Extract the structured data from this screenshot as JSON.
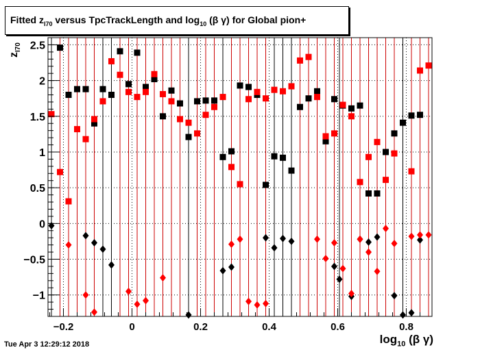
{
  "title": {
    "prefix": "Fitted  z",
    "prefix_sub": "I70",
    "middle": "  versus TpcTrackLength and log",
    "middle_sub": "10",
    "suffix": " (β γ) for Global pion+"
  },
  "y_axis_label": {
    "main": "z",
    "sub": "I70"
  },
  "x_axis_label": {
    "main": "log",
    "sub": "10",
    "suffix": " (β γ)"
  },
  "timestamp": "Tue Apr  3 12:29:12 2018",
  "chart_data": {
    "type": "scatter",
    "xlim": [
      -0.245,
      0.875
    ],
    "ylim": [
      -1.3,
      2.6
    ],
    "x_ticks": [
      -0.2,
      0,
      0.2,
      0.4,
      0.6,
      0.8
    ],
    "x_tick_labels": [
      "−0.2",
      "0",
      "0.2",
      "0.4",
      "0.6",
      "0.8"
    ],
    "y_ticks": [
      -1,
      -0.5,
      0,
      0.5,
      1,
      1.5,
      2,
      2.5
    ],
    "y_tick_labels": [
      "−1",
      "−0.5",
      "0",
      "0.5",
      "1",
      "1.5",
      "2",
      "2.5"
    ],
    "grid": true,
    "series": [
      {
        "color": "#000000",
        "marker": "square",
        "points": [
          [
            -0.21,
            2.46
          ],
          [
            -0.185,
            1.8
          ],
          [
            -0.16,
            1.88
          ],
          [
            -0.135,
            1.88
          ],
          [
            -0.11,
            1.4
          ],
          [
            -0.085,
            1.88
          ],
          [
            -0.06,
            1.8
          ],
          [
            -0.035,
            2.41
          ],
          [
            -0.01,
            1.95
          ],
          [
            0.015,
            2.39
          ],
          [
            0.04,
            1.91
          ],
          [
            0.065,
            2.02
          ],
          [
            0.09,
            1.5
          ],
          [
            0.115,
            1.86
          ],
          [
            0.14,
            1.68
          ],
          [
            0.165,
            1.21
          ],
          [
            0.19,
            1.71
          ],
          [
            0.215,
            1.72
          ],
          [
            0.24,
            1.72
          ],
          [
            0.265,
            0.93
          ],
          [
            0.29,
            1.01
          ],
          [
            0.315,
            1.93
          ],
          [
            0.34,
            1.91
          ],
          [
            0.365,
            1.8
          ],
          [
            0.39,
            0.54
          ],
          [
            0.415,
            0.94
          ],
          [
            0.44,
            0.92
          ],
          [
            0.465,
            0.74
          ],
          [
            0.49,
            1.63
          ],
          [
            0.515,
            1.75
          ],
          [
            0.54,
            1.85
          ],
          [
            0.565,
            1.15
          ],
          [
            0.59,
            1.74
          ],
          [
            0.615,
            1.65
          ],
          [
            0.64,
            1.61
          ],
          [
            0.665,
            1.65
          ],
          [
            0.69,
            0.42
          ],
          [
            0.715,
            0.42
          ],
          [
            0.74,
            1.0
          ],
          [
            0.765,
            1.26
          ],
          [
            0.79,
            1.41
          ],
          [
            0.815,
            1.51
          ],
          [
            0.84,
            1.52
          ]
        ]
      },
      {
        "color": "#ff0000",
        "marker": "square",
        "points": [
          [
            -0.235,
            1.53
          ],
          [
            -0.21,
            0.72
          ],
          [
            -0.185,
            0.31
          ],
          [
            -0.16,
            1.32
          ],
          [
            -0.135,
            1.18
          ],
          [
            -0.11,
            1.46
          ],
          [
            -0.085,
            1.71
          ],
          [
            -0.06,
            2.27
          ],
          [
            -0.035,
            2.08
          ],
          [
            -0.01,
            1.84
          ],
          [
            0.015,
            1.77
          ],
          [
            0.04,
            1.84
          ],
          [
            0.065,
            2.09
          ],
          [
            0.09,
            1.81
          ],
          [
            0.115,
            1.71
          ],
          [
            0.14,
            1.46
          ],
          [
            0.165,
            1.41
          ],
          [
            0.19,
            1.26
          ],
          [
            0.215,
            1.52
          ],
          [
            0.24,
            1.63
          ],
          [
            0.265,
            1.77
          ],
          [
            0.29,
            0.79
          ],
          [
            0.315,
            0.55
          ],
          [
            0.34,
            1.74
          ],
          [
            0.365,
            1.84
          ],
          [
            0.39,
            1.75
          ],
          [
            0.415,
            1.87
          ],
          [
            0.44,
            1.85
          ],
          [
            0.465,
            1.92
          ],
          [
            0.49,
            2.28
          ],
          [
            0.515,
            2.33
          ],
          [
            0.54,
            1.77
          ],
          [
            0.565,
            1.22
          ],
          [
            0.59,
            1.26
          ],
          [
            0.615,
            1.66
          ],
          [
            0.64,
            1.5
          ],
          [
            0.665,
            0.58
          ],
          [
            0.69,
            0.93
          ],
          [
            0.715,
            1.14
          ],
          [
            0.74,
            0.61
          ],
          [
            0.765,
            0.98
          ],
          [
            0.815,
            0.73
          ],
          [
            0.84,
            2.14
          ],
          [
            0.865,
            2.21
          ]
        ]
      },
      {
        "color": "#000000",
        "marker": "diamond",
        "points": [
          [
            -0.235,
            -0.03
          ],
          [
            -0.135,
            -0.17
          ],
          [
            -0.11,
            -0.27
          ],
          [
            -0.085,
            -0.36
          ],
          [
            -0.06,
            -0.58
          ],
          [
            0.165,
            -1.28
          ],
          [
            0.265,
            -0.66
          ],
          [
            0.29,
            -0.61
          ],
          [
            0.39,
            -0.2
          ],
          [
            0.415,
            -0.34
          ],
          [
            0.44,
            -0.21
          ],
          [
            0.465,
            -0.25
          ],
          [
            0.59,
            -0.6
          ],
          [
            0.605,
            -0.78
          ],
          [
            0.64,
            -1.02
          ],
          [
            0.665,
            -0.22
          ],
          [
            0.69,
            -0.26
          ],
          [
            0.715,
            -0.19
          ],
          [
            0.765,
            -1.01
          ],
          [
            0.79,
            -1.28
          ],
          [
            0.815,
            -1.25
          ],
          [
            0.84,
            -0.23
          ]
        ]
      },
      {
        "color": "#ff0000",
        "marker": "diamond",
        "points": [
          [
            -0.185,
            -0.3
          ],
          [
            -0.135,
            -1.0
          ],
          [
            -0.11,
            -1.24
          ],
          [
            -0.01,
            -0.95
          ],
          [
            0.015,
            -1.13
          ],
          [
            0.04,
            -1.08
          ],
          [
            0.09,
            -0.76
          ],
          [
            0.29,
            -0.29
          ],
          [
            0.315,
            -0.22
          ],
          [
            0.34,
            -1.09
          ],
          [
            0.365,
            -1.14
          ],
          [
            0.39,
            -1.12
          ],
          [
            0.54,
            -0.22
          ],
          [
            0.565,
            -0.49
          ],
          [
            0.59,
            -0.27
          ],
          [
            0.615,
            -0.63
          ],
          [
            0.64,
            -0.98
          ],
          [
            0.665,
            -0.22
          ],
          [
            0.69,
            -0.4
          ],
          [
            0.715,
            -0.67
          ],
          [
            0.74,
            -0.07
          ],
          [
            0.765,
            -0.28
          ],
          [
            0.815,
            -0.18
          ],
          [
            0.84,
            -0.16
          ],
          [
            0.865,
            -0.16
          ]
        ]
      }
    ]
  }
}
